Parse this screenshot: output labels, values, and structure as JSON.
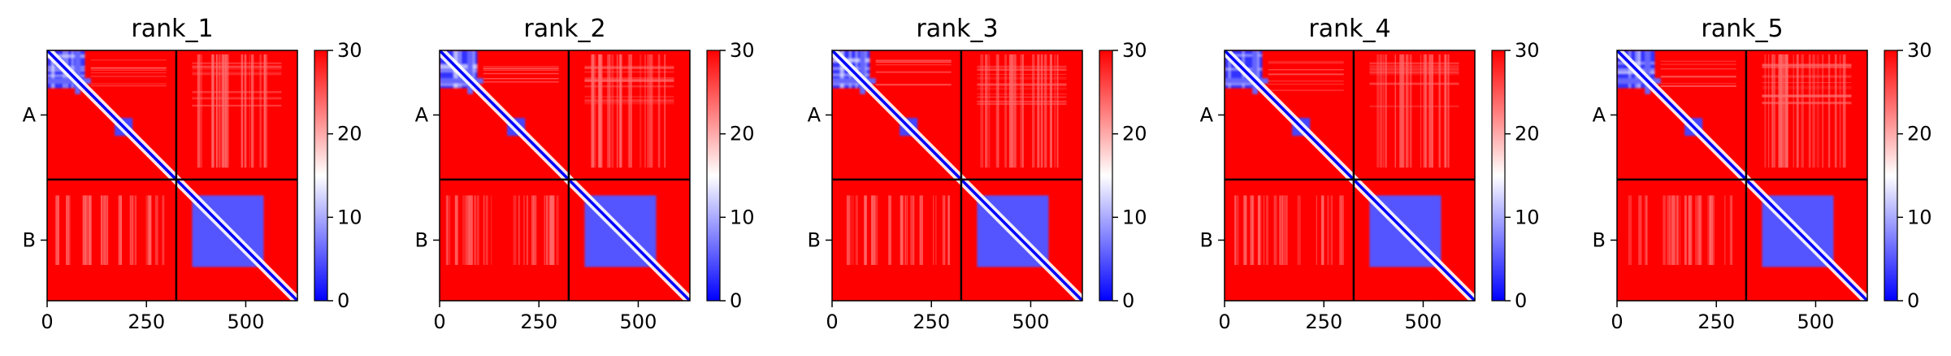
{
  "chart_data": {
    "type": "heatmap",
    "colorbar": {
      "range": [
        0,
        30
      ],
      "ticks": [
        0,
        10,
        20,
        30
      ],
      "colors": [
        "#0000ff",
        "#ffffff",
        "#ff0000"
      ]
    },
    "panels": [
      {
        "title": "rank_1",
        "xticks": [
          0,
          250,
          500
        ],
        "yticks": [
          "A",
          "B"
        ],
        "xlim": [
          0,
          630
        ],
        "boundary": 325,
        "diagonal_blocks": [
          {
            "range": [
              0,
              95
            ],
            "value": 3
          },
          {
            "range": [
              170,
              215
            ],
            "value": 4
          },
          {
            "range": [
              365,
              545
            ],
            "value": 5
          }
        ],
        "offdiag_texture": "light-red striped"
      },
      {
        "title": "rank_2",
        "xticks": [
          0,
          250,
          500
        ],
        "yticks": [
          "A",
          "B"
        ],
        "xlim": [
          0,
          630
        ],
        "boundary": 325,
        "diagonal_blocks": [
          {
            "range": [
              0,
              95
            ],
            "value": 3
          },
          {
            "range": [
              170,
              215
            ],
            "value": 4
          },
          {
            "range": [
              365,
              545
            ],
            "value": 5
          }
        ],
        "offdiag_texture": "light-red striped"
      },
      {
        "title": "rank_3",
        "xticks": [
          0,
          250,
          500
        ],
        "yticks": [
          "A",
          "B"
        ],
        "xlim": [
          0,
          630
        ],
        "boundary": 325,
        "diagonal_blocks": [
          {
            "range": [
              0,
              95
            ],
            "value": 3
          },
          {
            "range": [
              170,
              215
            ],
            "value": 4
          },
          {
            "range": [
              365,
              545
            ],
            "value": 5
          }
        ],
        "offdiag_texture": "light-red striped"
      },
      {
        "title": "rank_4",
        "xticks": [
          0,
          250,
          500
        ],
        "yticks": [
          "A",
          "B"
        ],
        "xlim": [
          0,
          630
        ],
        "boundary": 325,
        "diagonal_blocks": [
          {
            "range": [
              0,
              95
            ],
            "value": 3
          },
          {
            "range": [
              170,
              215
            ],
            "value": 4
          },
          {
            "range": [
              365,
              545
            ],
            "value": 5
          }
        ],
        "offdiag_texture": "light-red striped"
      },
      {
        "title": "rank_5",
        "xticks": [
          0,
          250,
          500
        ],
        "yticks": [
          "A",
          "B"
        ],
        "xlim": [
          0,
          630
        ],
        "boundary": 325,
        "diagonal_blocks": [
          {
            "range": [
              0,
              95
            ],
            "value": 3
          },
          {
            "range": [
              170,
              215
            ],
            "value": 4
          },
          {
            "range": [
              365,
              545
            ],
            "value": 5
          }
        ],
        "offdiag_texture": "light-red striped"
      }
    ]
  }
}
